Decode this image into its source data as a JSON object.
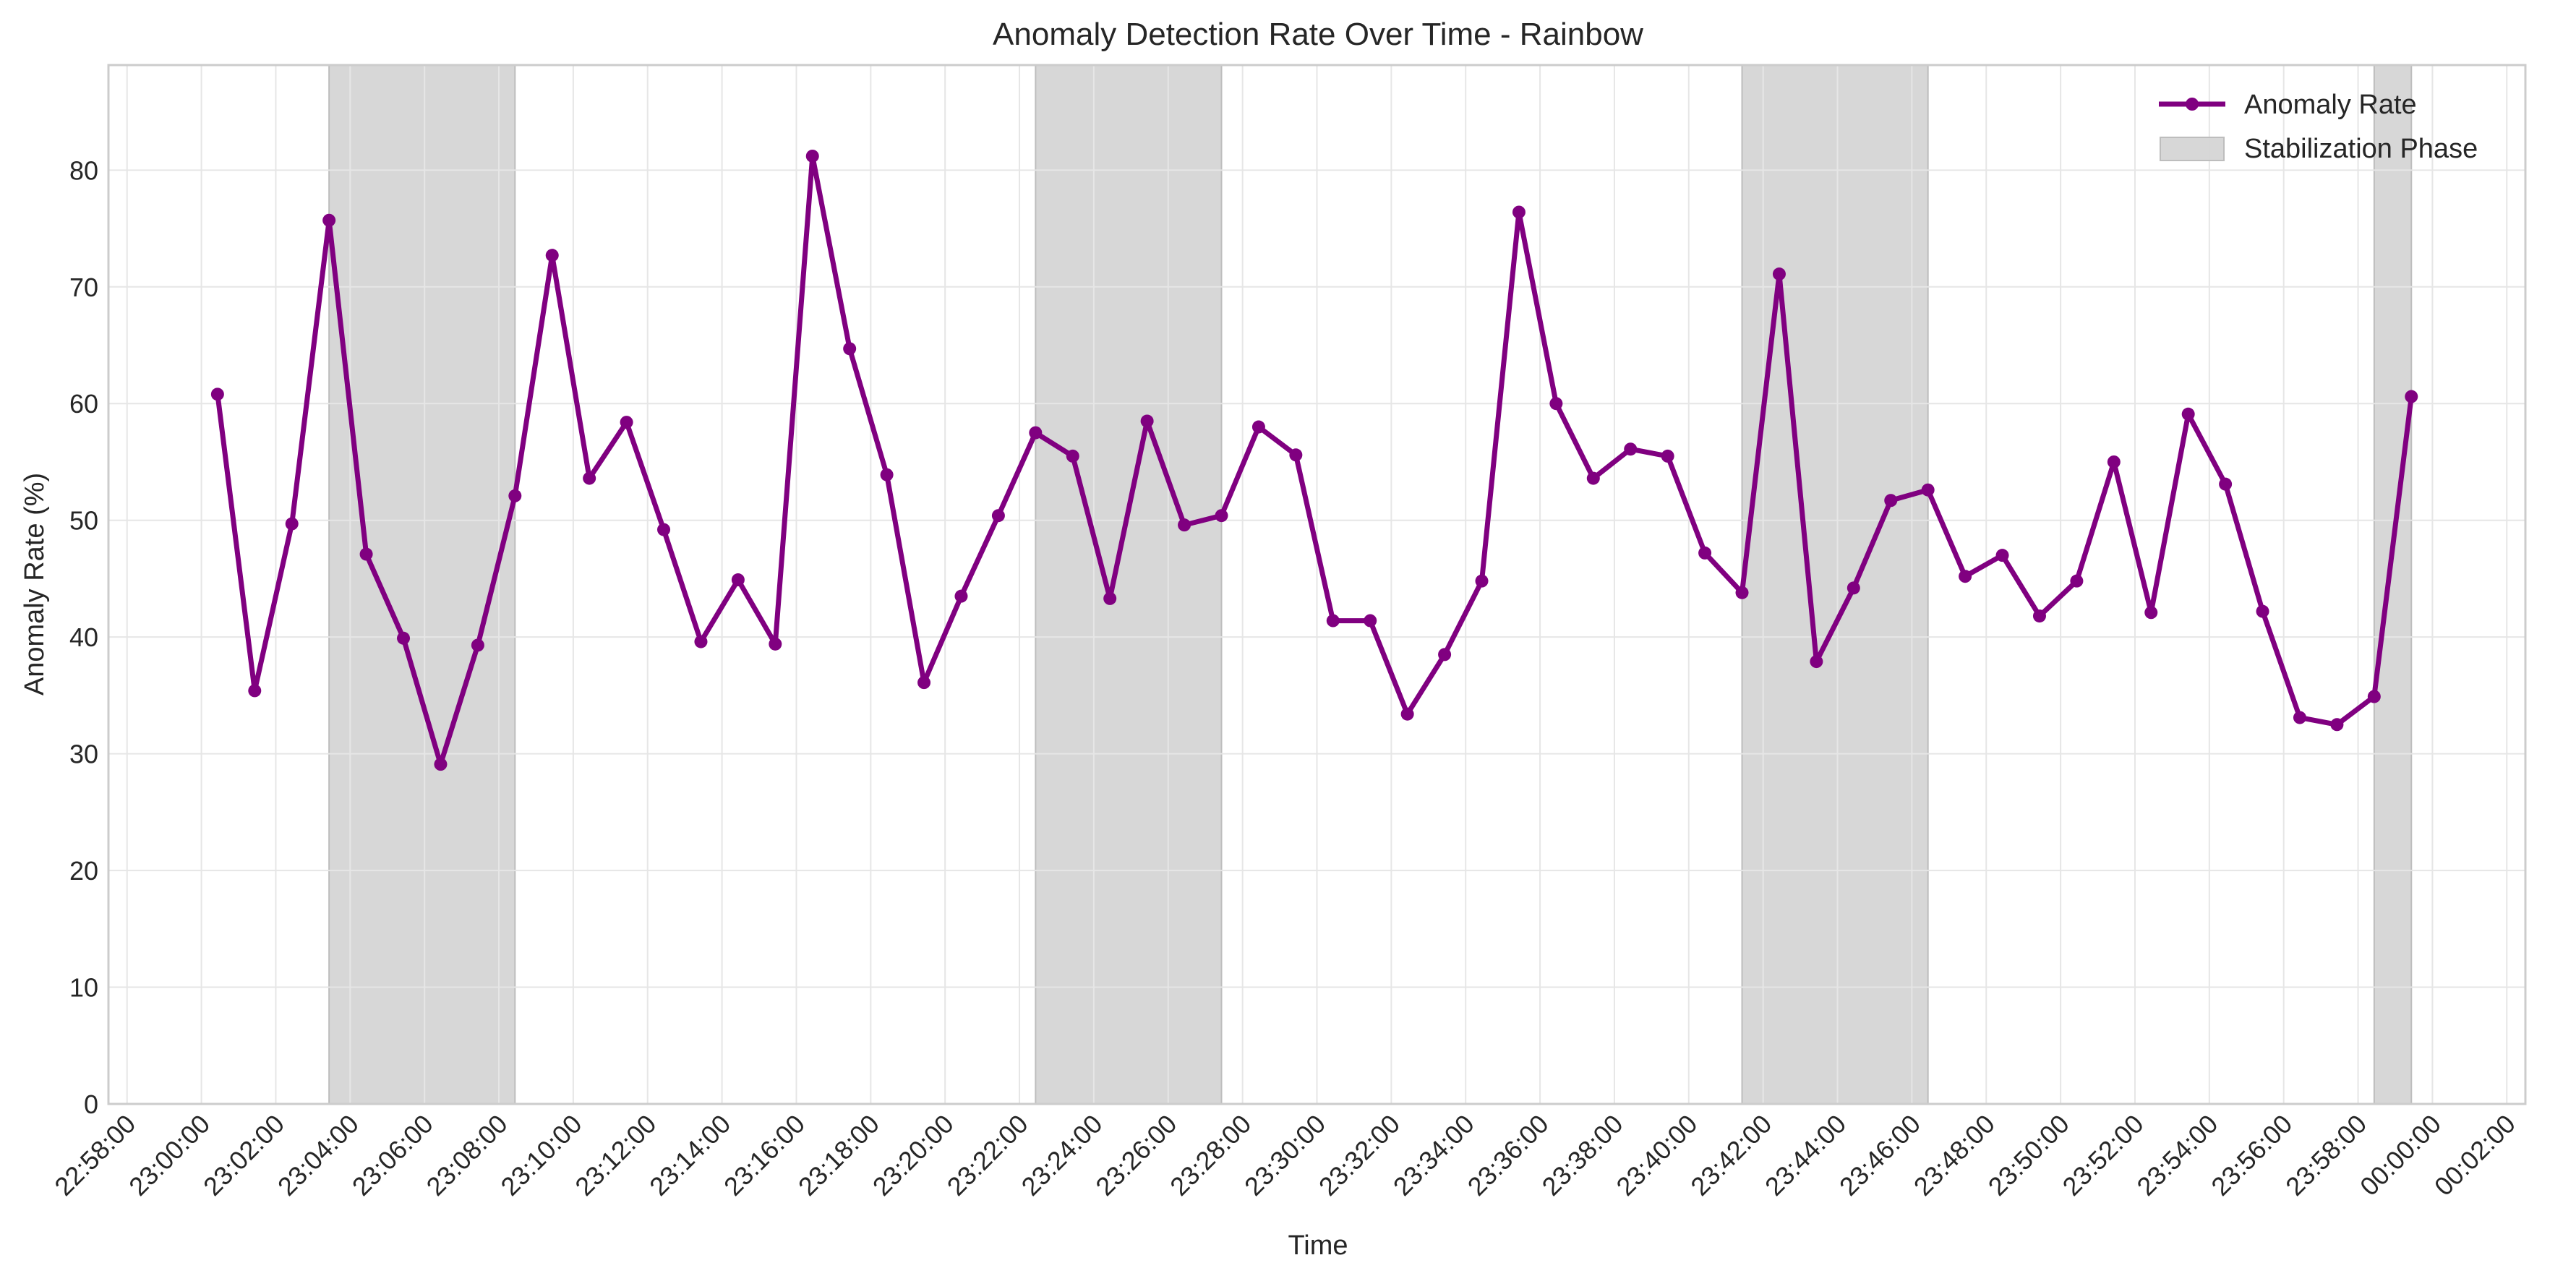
{
  "chart_data": {
    "type": "line",
    "title": "Anomaly Detection Rate Over Time - Rainbow",
    "xlabel": "Time",
    "ylabel": "Anomaly Rate (%)",
    "xlim": [
      "22:57:30",
      "00:02:30"
    ],
    "ylim": [
      0,
      89
    ],
    "grid": true,
    "legend_position": "top-right",
    "x_ticks": [
      "22:58:00",
      "23:00:00",
      "23:02:00",
      "23:04:00",
      "23:06:00",
      "23:08:00",
      "23:10:00",
      "23:12:00",
      "23:14:00",
      "23:16:00",
      "23:18:00",
      "23:20:00",
      "23:22:00",
      "23:24:00",
      "23:26:00",
      "23:28:00",
      "23:30:00",
      "23:32:00",
      "23:34:00",
      "23:36:00",
      "23:38:00",
      "23:40:00",
      "23:42:00",
      "23:44:00",
      "23:46:00",
      "23:48:00",
      "23:50:00",
      "23:52:00",
      "23:54:00",
      "23:56:00",
      "23:58:00",
      "00:00:00",
      "00:02:00"
    ],
    "y_ticks": [
      "0",
      "10",
      "20",
      "30",
      "40",
      "50",
      "60",
      "70",
      "80"
    ],
    "series": [
      {
        "name": "Anomaly Rate",
        "color": "#800080",
        "x": [
          "23:00:26",
          "23:01:26",
          "23:02:26",
          "23:03:26",
          "23:04:26",
          "23:05:26",
          "23:06:26",
          "23:07:26",
          "23:08:26",
          "23:09:26",
          "23:10:26",
          "23:11:26",
          "23:12:26",
          "23:13:26",
          "23:14:26",
          "23:15:26",
          "23:16:26",
          "23:17:26",
          "23:18:26",
          "23:19:26",
          "23:20:26",
          "23:21:26",
          "23:22:26",
          "23:23:26",
          "23:24:26",
          "23:25:26",
          "23:26:26",
          "23:27:26",
          "23:28:26",
          "23:29:26",
          "23:30:26",
          "23:31:26",
          "23:32:26",
          "23:33:26",
          "23:34:26",
          "23:35:26",
          "23:36:26",
          "23:37:26",
          "23:38:26",
          "23:39:26",
          "23:40:26",
          "23:41:26",
          "23:42:26",
          "23:43:26",
          "23:44:26",
          "23:45:26",
          "23:46:26",
          "23:47:26",
          "23:48:26",
          "23:49:26",
          "23:50:26",
          "23:51:26",
          "23:52:26",
          "23:53:26",
          "23:54:26",
          "23:55:26",
          "23:56:26",
          "23:57:26",
          "23:58:26",
          "23:59:26"
        ],
        "values": [
          60.8,
          35.4,
          49.7,
          75.7,
          47.1,
          39.9,
          29.1,
          39.3,
          52.1,
          72.7,
          53.6,
          58.4,
          49.2,
          39.6,
          44.9,
          39.4,
          81.2,
          64.7,
          53.9,
          36.1,
          43.5,
          50.4,
          57.5,
          55.5,
          43.3,
          58.5,
          49.6,
          50.4,
          58.0,
          55.6,
          41.4,
          41.4,
          33.4,
          38.5,
          44.8,
          76.4,
          60.0,
          53.6,
          56.1,
          55.5,
          47.2,
          43.8,
          71.1,
          37.9,
          44.2,
          51.7,
          52.6,
          45.2,
          47.0,
          41.8,
          44.8,
          55.0,
          42.1,
          59.1,
          53.1,
          42.2,
          33.1,
          32.5,
          34.9,
          60.6
        ]
      }
    ],
    "shaded_regions": {
      "name": "Stabilization Phase",
      "color": "#d3d3d3",
      "ranges": [
        [
          "23:03:26",
          "23:08:26"
        ],
        [
          "23:22:26",
          "23:27:26"
        ],
        [
          "23:41:26",
          "23:46:26"
        ],
        [
          "23:58:26",
          "23:59:26"
        ]
      ]
    }
  }
}
